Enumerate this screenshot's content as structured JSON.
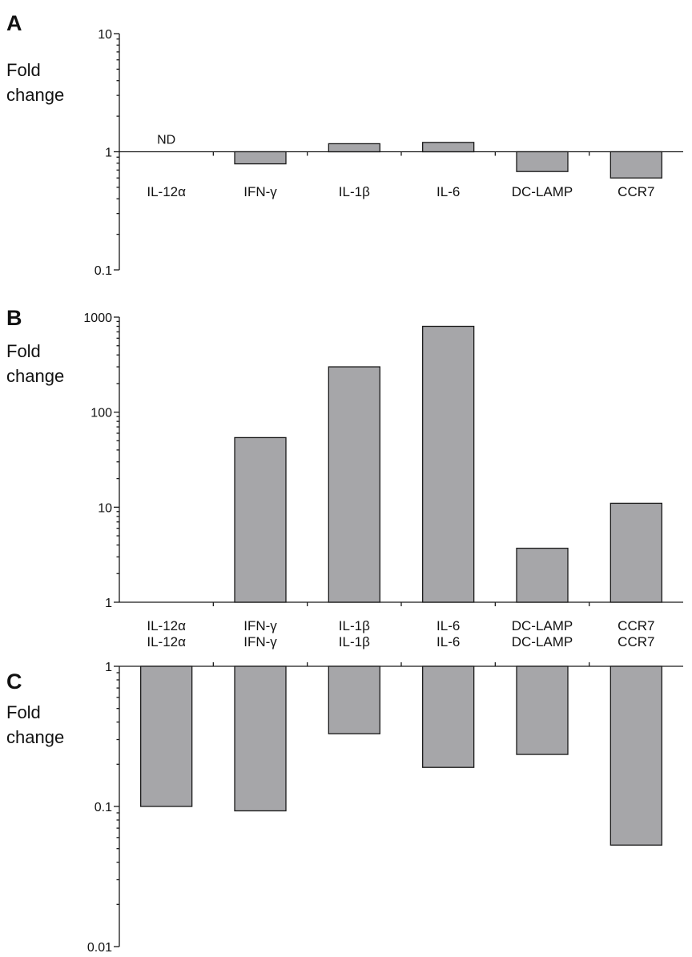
{
  "chart_data": [
    {
      "panel": "A",
      "type": "bar",
      "scale": "log",
      "ylabel_lines": [
        "Fold",
        "change"
      ],
      "ylim": [
        0.1,
        10
      ],
      "yticks": [
        {
          "v": 10,
          "label": "10"
        },
        {
          "v": 1,
          "label": "1"
        },
        {
          "v": 0.1,
          "label": "0.1"
        }
      ],
      "baseline": 1,
      "categories": [
        "IL-12α",
        "IFN-γ",
        "IL-1β",
        "IL-6",
        "DC-LAMP",
        "CCR7"
      ],
      "values": [
        null,
        0.79,
        1.17,
        1.2,
        0.68,
        0.6
      ],
      "annotations": [
        {
          "category": "IL-12α",
          "text": "ND"
        }
      ],
      "category_labels_position": "below-baseline"
    },
    {
      "panel": "B",
      "type": "bar",
      "scale": "log",
      "ylabel_lines": [
        "Fold",
        "change"
      ],
      "ylim": [
        1,
        1000
      ],
      "yticks": [
        {
          "v": 1000,
          "label": "1000"
        },
        {
          "v": 100,
          "label": "100"
        },
        {
          "v": 10,
          "label": "10"
        },
        {
          "v": 1,
          "label": "1"
        }
      ],
      "baseline": 1,
      "categories": [
        "IL-12α",
        "IFN-γ",
        "IL-1β",
        "IL-6",
        "DC-LAMP",
        "CCR7"
      ],
      "values": [
        null,
        54,
        300,
        800,
        3.7,
        11
      ],
      "annotations": [],
      "category_labels_position": "below-axis"
    },
    {
      "panel": "C",
      "type": "bar",
      "scale": "log",
      "ylabel_lines": [
        "Fold",
        "change"
      ],
      "ylim": [
        0.01,
        1
      ],
      "yticks": [
        {
          "v": 1,
          "label": "1"
        },
        {
          "v": 0.1,
          "label": "0.1"
        },
        {
          "v": 0.01,
          "label": "0.01"
        }
      ],
      "baseline": 1,
      "categories": [
        "IL-12α",
        "IFN-γ",
        "IL-1β",
        "IL-6",
        "DC-LAMP",
        "CCR7"
      ],
      "values": [
        0.1,
        0.093,
        0.33,
        0.19,
        0.235,
        0.053
      ],
      "annotations": [],
      "category_labels_position": "above-baseline"
    }
  ]
}
